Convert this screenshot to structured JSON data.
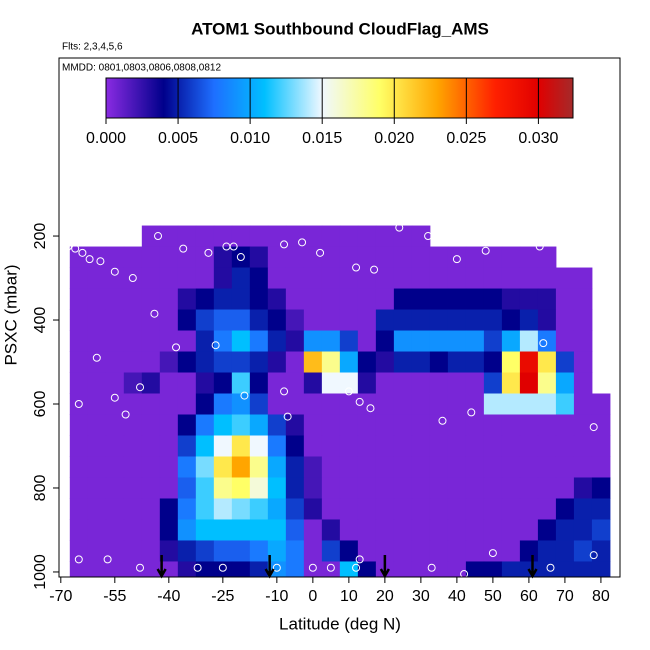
{
  "chart_data": {
    "type": "heatmap",
    "title": "ATOM1 Southbound CloudFlag_AMS",
    "annotations": [
      "Flts: 2,3,4,5,6",
      "MMDD: 0801,0803,0806,0808,0812"
    ],
    "xlabel": "Latitude (deg N)",
    "ylabel": "PSXC (mbar)",
    "xlim": [
      -70.5,
      85.3
    ],
    "ylim": [
      1012,
      -224
    ],
    "xticks": [
      -70,
      -55,
      -40,
      -25,
      -10,
      0,
      10,
      20,
      30,
      40,
      50,
      60,
      70,
      80
    ],
    "yticks": [
      200,
      400,
      600,
      800,
      1000
    ],
    "x": [
      -65,
      -60,
      -55,
      -50,
      -45,
      -40,
      -35,
      -30,
      -25,
      -20,
      -15,
      -10,
      -5,
      0,
      5,
      10,
      15,
      20,
      25,
      30,
      35,
      40,
      45,
      50,
      55,
      60,
      65,
      70,
      75,
      80
    ],
    "y": [
      200,
      250,
      300,
      350,
      400,
      450,
      500,
      550,
      600,
      650,
      700,
      750,
      800,
      850,
      900,
      950,
      1000
    ],
    "z": [
      [
        null,
        null,
        null,
        null,
        0.0005,
        0.0005,
        0.0005,
        0.0005,
        0.0005,
        0.0005,
        0.0005,
        0.0005,
        0.0005,
        0.0005,
        0.0005,
        0.0005,
        0.0005,
        0.0005,
        0.0005,
        0.0005,
        null,
        null,
        null,
        null,
        null,
        null,
        null,
        null,
        null,
        null
      ],
      [
        0.0005,
        0.0005,
        0.0005,
        0.0005,
        0.0005,
        0.0005,
        0.0005,
        0.0005,
        0.003,
        0.004,
        0.003,
        0.0005,
        0.0005,
        0.0005,
        0.0005,
        0.0005,
        0.0005,
        0.0005,
        0.0005,
        0.0005,
        0.0005,
        0.0005,
        0.0005,
        0.0005,
        0.0005,
        0.0005,
        0.0005,
        null,
        null,
        null
      ],
      [
        0.0005,
        0.0005,
        0.0005,
        0.0005,
        0.0005,
        0.0005,
        0.0005,
        0.0005,
        0.003,
        0.005,
        0.004,
        0.0005,
        0.0005,
        0.0005,
        0.0005,
        0.0005,
        0.0005,
        0.0005,
        0.0005,
        0.0005,
        0.0005,
        0.0005,
        0.0005,
        0.0005,
        0.0005,
        0.0005,
        0.0005,
        0.0005,
        0.0005,
        null
      ],
      [
        0.0005,
        0.0005,
        0.0005,
        0.0005,
        0.0005,
        0.0005,
        0.003,
        0.004,
        0.005,
        0.005,
        0.004,
        0.003,
        0.0005,
        0.0005,
        0.0005,
        0.0005,
        0.0005,
        0.0005,
        0.004,
        0.004,
        0.004,
        0.004,
        0.004,
        0.004,
        0.003,
        0.003,
        0.003,
        0.0005,
        0.0005,
        null
      ],
      [
        0.0005,
        0.0005,
        0.0005,
        0.0005,
        0.0005,
        0.0005,
        0.004,
        0.006,
        0.007,
        0.007,
        0.005,
        0.004,
        0.002,
        0.0005,
        0.0005,
        0.0005,
        0.0005,
        0.005,
        0.005,
        0.005,
        0.005,
        0.005,
        0.005,
        0.005,
        0.004,
        0.005,
        0.003,
        0.0005,
        0.0005,
        null
      ],
      [
        0.0005,
        0.0005,
        0.0005,
        0.0005,
        0.0005,
        0.0005,
        0.0005,
        0.005,
        0.008,
        0.011,
        0.008,
        0.005,
        0.003,
        0.009,
        0.009,
        0.006,
        0.0005,
        0.004,
        0.009,
        0.009,
        0.009,
        0.009,
        0.009,
        0.006,
        0.01,
        0.014,
        0.008,
        0.0005,
        0.0005,
        null
      ],
      [
        0.0005,
        0.0005,
        0.0005,
        0.0005,
        0.0005,
        0.002,
        0.004,
        0.005,
        0.006,
        0.006,
        0.005,
        0.003,
        0.0005,
        0.022,
        0.018,
        0.01,
        0.004,
        0.003,
        0.005,
        0.005,
        0.004,
        0.005,
        0.005,
        0.004,
        0.019,
        0.029,
        0.02,
        0.006,
        0.0005,
        null
      ],
      [
        0.0005,
        0.0005,
        0.0005,
        0.002,
        0.003,
        0.0005,
        0.0005,
        0.003,
        0.004,
        0.012,
        0.004,
        0.0005,
        0.0005,
        0.003,
        0.015,
        0.015,
        0.003,
        0.0005,
        0.0005,
        0.0005,
        0.0005,
        0.0005,
        0.0005,
        0.006,
        0.02,
        0.03,
        0.018,
        0.01,
        0.0005,
        null
      ],
      [
        0.0005,
        0.0005,
        0.0005,
        0.0005,
        0.0005,
        0.0005,
        0.0005,
        0.004,
        0.008,
        0.009,
        0.006,
        0.0005,
        0.0005,
        0.0005,
        0.0005,
        0.0005,
        0.0005,
        0.0005,
        0.0005,
        0.0005,
        0.0005,
        0.0005,
        0.0005,
        0.014,
        0.014,
        0.014,
        0.014,
        0.012,
        0.0005,
        0.0005
      ],
      [
        0.0005,
        0.0005,
        0.0005,
        0.0005,
        0.0005,
        0.0005,
        0.004,
        0.008,
        0.011,
        0.012,
        0.01,
        0.006,
        0.003,
        0.0005,
        0.0005,
        0.0005,
        0.0005,
        0.0005,
        0.0005,
        0.0005,
        0.0005,
        0.0005,
        0.0005,
        0.0005,
        0.0005,
        0.0005,
        0.0005,
        0.0005,
        0.0005,
        0.0005
      ],
      [
        0.0005,
        0.0005,
        0.0005,
        0.0005,
        0.0005,
        0.0005,
        0.006,
        0.011,
        0.015,
        0.02,
        0.015,
        0.008,
        0.004,
        0.0005,
        0.0005,
        0.0005,
        0.0005,
        0.0005,
        0.0005,
        0.0005,
        0.0005,
        0.0005,
        0.0005,
        0.0005,
        0.0005,
        0.0005,
        0.0005,
        0.0005,
        0.0005,
        0.0005
      ],
      [
        0.0005,
        0.0005,
        0.0005,
        0.0005,
        0.0005,
        0.0005,
        0.008,
        0.013,
        0.02,
        0.023,
        0.018,
        0.01,
        0.005,
        0.002,
        0.0005,
        0.0005,
        0.0005,
        0.0005,
        0.0005,
        0.0005,
        0.0005,
        0.0005,
        0.0005,
        0.0005,
        0.0005,
        0.0005,
        0.0005,
        0.0005,
        0.0005,
        0.0005
      ],
      [
        0.0005,
        0.0005,
        0.0005,
        0.0005,
        0.0005,
        0.0005,
        0.007,
        0.012,
        0.018,
        0.019,
        0.016,
        0.011,
        0.005,
        0.002,
        0.0005,
        0.0005,
        0.0005,
        0.0005,
        0.0005,
        0.0005,
        0.0005,
        0.0005,
        0.0005,
        0.0005,
        0.0005,
        0.0005,
        0.0005,
        0.0005,
        0.003,
        0.004
      ],
      [
        0.0005,
        0.0005,
        0.0005,
        0.0005,
        0.0005,
        0.004,
        0.008,
        0.012,
        0.014,
        0.013,
        0.012,
        0.01,
        0.006,
        0.003,
        0.0005,
        0.0005,
        0.0005,
        0.0005,
        0.0005,
        0.0005,
        0.0005,
        0.0005,
        0.0005,
        0.0005,
        0.0005,
        0.0005,
        0.0005,
        0.004,
        0.005,
        0.005
      ],
      [
        0.0005,
        0.0005,
        0.0005,
        0.0005,
        0.0005,
        0.004,
        0.009,
        0.011,
        0.011,
        0.011,
        0.011,
        0.011,
        0.007,
        0.0005,
        0.003,
        0.0005,
        0.0005,
        0.0005,
        0.0005,
        0.0005,
        0.0005,
        0.0005,
        0.0005,
        0.0005,
        0.0005,
        0.0005,
        0.004,
        0.005,
        0.005,
        0.006
      ],
      [
        0.0005,
        0.0005,
        0.0005,
        0.0005,
        0.0005,
        0.003,
        0.005,
        0.006,
        0.007,
        0.007,
        0.008,
        0.01,
        0.008,
        0.0005,
        0.006,
        0.004,
        0.0005,
        0.0005,
        0.0005,
        0.0005,
        0.0005,
        0.0005,
        0.0005,
        0.0005,
        0.0005,
        0.004,
        0.005,
        0.005,
        0.006,
        0.005
      ],
      [
        0.0005,
        0.0005,
        0.0005,
        0.0005,
        0.0005,
        0.0005,
        0.003,
        0.004,
        0.004,
        0.004,
        0.005,
        0.009,
        0.008,
        0.0005,
        0.0005,
        0.011,
        0.004,
        0.0005,
        0.0005,
        0.0005,
        0.0005,
        0.0005,
        0.004,
        0.004,
        0.005,
        0.005,
        0.005,
        0.005,
        0.005,
        0.005
      ]
    ],
    "colorscale": [
      [
        0,
        "#8a2be2"
      ],
      [
        0.004,
        "#00008b"
      ],
      [
        0.0075,
        "#1e6fff"
      ],
      [
        0.011,
        "#00bfff"
      ],
      [
        0.015,
        "#f0f8ff"
      ],
      [
        0.019,
        "#ffff66"
      ],
      [
        0.023,
        "#ffa500"
      ],
      [
        0.027,
        "#ff2000"
      ],
      [
        0.03,
        "#e00000"
      ],
      [
        0.0324,
        "#a52a2a"
      ]
    ],
    "zlim": [
      0,
      0.0324
    ],
    "zticks": [
      {
        "value": 0,
        "label": "0.000"
      },
      {
        "value": 0.005,
        "label": "0.005"
      },
      {
        "value": 0.01,
        "label": "0.010"
      },
      {
        "value": 0.015,
        "label": "0.015"
      },
      {
        "value": 0.02,
        "label": "0.020"
      },
      {
        "value": 0.025,
        "label": "0.025"
      },
      {
        "value": 0.03,
        "label": "0.030"
      }
    ],
    "points": {
      "color": "#ffffff",
      "x": [
        -68,
        -66,
        -64,
        -62,
        -59,
        -55,
        -50,
        -43,
        -36,
        -29,
        -24,
        -22,
        -20,
        -8,
        -3,
        2,
        12,
        17,
        24,
        32,
        40,
        48,
        63,
        -44,
        -38,
        -27,
        -60,
        -55,
        -65,
        -48,
        -52,
        -19,
        -7,
        -8,
        10,
        13,
        16,
        36,
        44,
        64,
        78,
        -65,
        -57,
        -48,
        -32,
        -25,
        -10,
        0,
        5,
        12,
        13,
        33,
        42,
        50,
        66,
        78
      ],
      "y": [
        225,
        230,
        240,
        255,
        260,
        285,
        300,
        200,
        230,
        240,
        225,
        225,
        250,
        220,
        215,
        240,
        275,
        280,
        180,
        200,
        255,
        235,
        225,
        385,
        465,
        460,
        490,
        585,
        600,
        560,
        625,
        580,
        630,
        570,
        570,
        595,
        610,
        640,
        620,
        455,
        655,
        970,
        970,
        990,
        990,
        990,
        990,
        990,
        990,
        990,
        970,
        990,
        1005,
        955,
        990,
        960
      ]
    },
    "markers": [
      -42,
      -12,
      20,
      61
    ]
  }
}
